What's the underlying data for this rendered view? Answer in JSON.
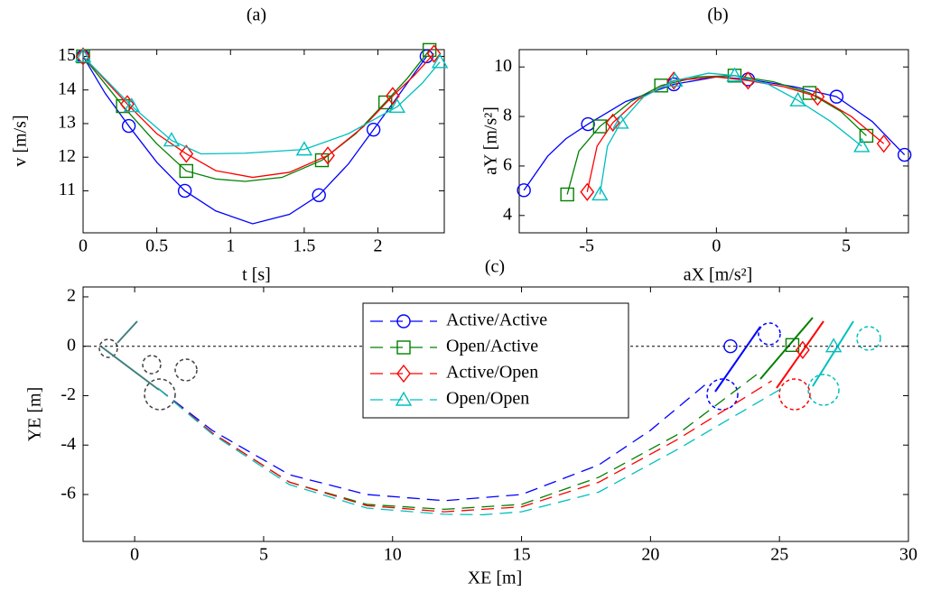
{
  "chart_data": [
    {
      "type": "line",
      "title": "(a)",
      "x_label": "t [s]",
      "y_label": "v [m/s]",
      "xlim": [
        0,
        2.45
      ],
      "ylim": [
        9.75,
        15.2
      ],
      "xticks": [
        0,
        0.5,
        1,
        1.5,
        2
      ],
      "yticks": [
        11,
        12,
        13,
        14,
        15
      ],
      "linestyle": "solid",
      "series": [
        {
          "color": "#0000ff",
          "marker": "circle",
          "x": [
            0,
            0.15,
            0.31,
            0.5,
            0.69,
            0.9,
            1.15,
            1.4,
            1.6,
            1.8,
            1.97,
            2.15,
            2.33
          ],
          "values": [
            15,
            13.9,
            12.93,
            11.85,
            11.0,
            10.4,
            10.02,
            10.3,
            10.87,
            11.8,
            12.82,
            13.9,
            15
          ],
          "marker_x": [
            0,
            0.31,
            0.69,
            1.6,
            1.97,
            2.33
          ],
          "marker_values": [
            15,
            12.93,
            11.0,
            10.87,
            12.82,
            15.0
          ]
        },
        {
          "color": "#008000",
          "marker": "square",
          "x": [
            0,
            0.27,
            0.5,
            0.7,
            0.9,
            1.1,
            1.35,
            1.62,
            1.85,
            2.05,
            2.2,
            2.35
          ],
          "values": [
            15,
            13.52,
            12.4,
            11.59,
            11.35,
            11.28,
            11.4,
            11.91,
            12.7,
            13.63,
            14.35,
            15.19
          ],
          "marker_x": [
            0,
            0.27,
            0.7,
            1.62,
            2.05,
            2.35
          ],
          "marker_values": [
            15,
            13.52,
            11.59,
            11.91,
            13.63,
            15.19
          ]
        },
        {
          "color": "#ff0000",
          "marker": "diamond",
          "x": [
            0,
            0.3,
            0.5,
            0.7,
            0.9,
            1.15,
            1.4,
            1.66,
            1.9,
            2.1,
            2.25,
            2.38
          ],
          "values": [
            15,
            13.58,
            12.7,
            12.1,
            11.6,
            11.4,
            11.55,
            12.05,
            12.9,
            13.82,
            14.45,
            15.08
          ],
          "marker_x": [
            0,
            0.3,
            0.7,
            1.66,
            2.1,
            2.38
          ],
          "marker_values": [
            15,
            13.58,
            12.1,
            12.05,
            13.82,
            15.08
          ]
        },
        {
          "color": "#00bfbf",
          "marker": "triangle",
          "x": [
            0,
            0.33,
            0.6,
            0.8,
            1.1,
            1.5,
            1.8,
            2.13,
            2.3,
            2.42
          ],
          "values": [
            15,
            13.52,
            12.5,
            12.1,
            12.12,
            12.23,
            12.7,
            13.5,
            14.2,
            14.83
          ],
          "marker_x": [
            0,
            0.33,
            0.6,
            1.5,
            2.13,
            2.42
          ],
          "marker_values": [
            15,
            13.52,
            12.5,
            12.23,
            13.5,
            14.83
          ]
        }
      ]
    },
    {
      "type": "line",
      "title": "(b)",
      "x_label": "aX [m/s²]",
      "y_label": "aY [m/s²]",
      "xlim": [
        -7.6,
        7.4
      ],
      "ylim": [
        3.3,
        10.7
      ],
      "xticks": [
        -5,
        0,
        5
      ],
      "yticks": [
        4,
        6,
        8,
        10
      ],
      "linestyle": "solid",
      "series": [
        {
          "color": "#0000ff",
          "marker": "circle",
          "x": [
            -7.42,
            -6.5,
            -5.8,
            -4.95,
            -3.5,
            -1.64,
            0,
            1.22,
            3,
            4.63,
            6,
            7.25
          ],
          "values": [
            5.02,
            6.4,
            7.1,
            7.69,
            8.6,
            9.3,
            9.6,
            9.5,
            9.2,
            8.8,
            7.8,
            6.45
          ],
          "marker_x": [
            -7.42,
            -4.95,
            -1.64,
            1.22,
            4.63,
            7.25
          ],
          "marker_values": [
            5.02,
            7.69,
            9.3,
            9.5,
            8.8,
            6.45
          ]
        },
        {
          "color": "#008000",
          "marker": "square",
          "x": [
            -5.75,
            -5.3,
            -4.49,
            -3.3,
            -2.13,
            -0.7,
            0.7,
            2.2,
            3.59,
            4.8,
            5.78
          ],
          "values": [
            4.85,
            6.6,
            7.6,
            8.6,
            9.25,
            9.6,
            9.65,
            9.4,
            8.95,
            8.2,
            7.22
          ],
          "marker_x": [
            -5.75,
            -4.49,
            -2.13,
            0.7,
            3.59,
            5.78
          ],
          "marker_values": [
            4.85,
            7.6,
            9.25,
            9.65,
            8.95,
            7.22
          ]
        },
        {
          "color": "#ff0000",
          "marker": "diamond",
          "x": [
            -4.98,
            -4.6,
            -3.99,
            -3,
            -1.64,
            0,
            1.22,
            2.6,
            3.9,
            5.2,
            6.45
          ],
          "values": [
            4.95,
            6.8,
            7.75,
            8.7,
            9.45,
            9.6,
            9.45,
            9.2,
            8.8,
            8.0,
            6.9
          ],
          "marker_x": [
            -4.98,
            -3.99,
            -1.64,
            1.22,
            3.9,
            6.45
          ],
          "marker_values": [
            4.95,
            7.75,
            9.45,
            9.45,
            8.8,
            6.9
          ]
        },
        {
          "color": "#00bfbf",
          "marker": "triangle",
          "x": [
            -4.49,
            -4.2,
            -3.69,
            -2.8,
            -1.6,
            -0.3,
            0.7,
            2,
            3.14,
            4.4,
            5.6
          ],
          "values": [
            4.85,
            6.8,
            7.75,
            8.8,
            9.45,
            9.75,
            9.65,
            9.3,
            8.65,
            7.8,
            6.8
          ],
          "marker_x": [
            -4.49,
            -3.69,
            -1.6,
            0.7,
            3.14,
            5.6
          ],
          "marker_values": [
            4.85,
            7.75,
            9.45,
            9.65,
            8.65,
            6.8
          ]
        }
      ]
    },
    {
      "type": "line",
      "title": "(c)",
      "x_label": "XE [m]",
      "y_label": "YE [m]",
      "xlim": [
        -2,
        30
      ],
      "ylim": [
        -7.9,
        2.4
      ],
      "xticks": [
        0,
        5,
        10,
        15,
        20,
        25,
        30
      ],
      "yticks": [
        -6,
        -4,
        -2,
        0,
        2
      ],
      "linestyle": "dashed",
      "reference_line": 0,
      "legend": "upper center",
      "series": [
        {
          "name": "Active/Active",
          "color": "#0000ff",
          "marker": "circle",
          "x": [
            0.9,
            3,
            6,
            9,
            12,
            15,
            18,
            20,
            22.3
          ],
          "values": [
            -1.7,
            -3.4,
            -5.2,
            -6.0,
            -6.25,
            -6.0,
            -4.8,
            -3.4,
            -1.4
          ],
          "marker_x": [
            23.1
          ],
          "marker_values": [
            0
          ]
        },
        {
          "name": "Open/Active",
          "color": "#008000",
          "marker": "square",
          "x": [
            0.9,
            3,
            6,
            9,
            12,
            15,
            18,
            21,
            24.3
          ],
          "values": [
            -1.7,
            -3.5,
            -5.5,
            -6.4,
            -6.6,
            -6.4,
            -5.3,
            -3.6,
            -1.0
          ],
          "marker_x": [
            25.5
          ],
          "marker_values": [
            0.05
          ]
        },
        {
          "name": "Active/Open",
          "color": "#ff0000",
          "marker": "diamond",
          "x": [
            0.9,
            3,
            6,
            9,
            12,
            15,
            18,
            21,
            24.7
          ],
          "values": [
            -1.7,
            -3.5,
            -5.5,
            -6.45,
            -6.7,
            -6.5,
            -5.5,
            -3.8,
            -1.4
          ],
          "marker_x": [
            25.9
          ],
          "marker_values": [
            -0.15
          ]
        },
        {
          "name": "Open/Open",
          "color": "#00bfbf",
          "marker": "triangle",
          "x": [
            0.9,
            3,
            6,
            9,
            12,
            13.5,
            15,
            18,
            21,
            25.1
          ],
          "values": [
            -1.7,
            -3.55,
            -5.6,
            -6.55,
            -6.8,
            -6.82,
            -6.7,
            -5.9,
            -4.2,
            -1.7
          ],
          "marker_x": [
            27.1
          ],
          "marker_values": [
            0
          ]
        }
      ]
    }
  ]
}
